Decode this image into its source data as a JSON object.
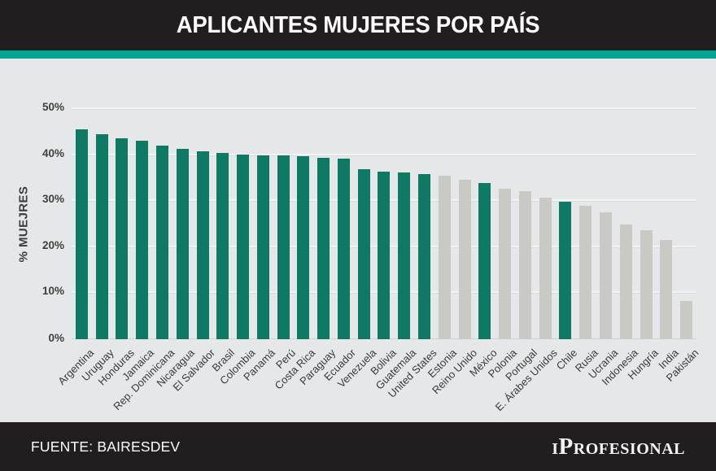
{
  "header": {
    "title": "APLICANTES MUJERES POR PAÍS"
  },
  "footer": {
    "source": "FUENTE: BAIRESDEV",
    "brand": "iProfesional"
  },
  "colors": {
    "header_bg": "#221e1f",
    "accent_stripe": "#00a591",
    "page_bg": "#e6e7e8",
    "bar_highlight": "#0e7a63",
    "bar_default": "#c9c9c6"
  },
  "chart_data": {
    "type": "bar",
    "title": "APLICANTES MUJERES POR PAÍS",
    "xlabel": "",
    "ylabel": "% MUEJRES",
    "ylim": [
      0,
      50
    ],
    "yticks": [
      "0%",
      "10%",
      "20%",
      "30%",
      "40%",
      "50%"
    ],
    "grid": true,
    "legend": false,
    "highlight_meaning": "teal bars = highlighted countries, gray bars = others",
    "points": [
      {
        "label": "Argentina",
        "value": 45.6,
        "highlighted": true
      },
      {
        "label": "Uruguay",
        "value": 44.6,
        "highlighted": true
      },
      {
        "label": "Honduras",
        "value": 43.6,
        "highlighted": true
      },
      {
        "label": "Jamaica",
        "value": 43.1,
        "highlighted": true
      },
      {
        "label": "Rep. Dominicana",
        "value": 42.1,
        "highlighted": true
      },
      {
        "label": "Nicaragua",
        "value": 41.4,
        "highlighted": true
      },
      {
        "label": "El Salvador",
        "value": 40.8,
        "highlighted": true
      },
      {
        "label": "Brasil",
        "value": 40.5,
        "highlighted": true
      },
      {
        "label": "Colombia",
        "value": 40.1,
        "highlighted": true
      },
      {
        "label": "Panamá",
        "value": 40.0,
        "highlighted": true
      },
      {
        "label": "Perú",
        "value": 39.9,
        "highlighted": true
      },
      {
        "label": "Costa Rica",
        "value": 39.8,
        "highlighted": true
      },
      {
        "label": "Paraguay",
        "value": 39.4,
        "highlighted": true
      },
      {
        "label": "Ecuador",
        "value": 39.3,
        "highlighted": true
      },
      {
        "label": "Venezuela",
        "value": 36.9,
        "highlighted": true
      },
      {
        "label": "Bolivia",
        "value": 36.4,
        "highlighted": true
      },
      {
        "label": "Guatemala",
        "value": 36.2,
        "highlighted": true
      },
      {
        "label": "United States",
        "value": 35.8,
        "highlighted": true
      },
      {
        "label": "Estonia",
        "value": 35.6,
        "highlighted": false
      },
      {
        "label": "Reino Unido",
        "value": 34.6,
        "highlighted": false
      },
      {
        "label": "México",
        "value": 34.0,
        "highlighted": true
      },
      {
        "label": "Polonia",
        "value": 32.6,
        "highlighted": false
      },
      {
        "label": "Portugal",
        "value": 32.2,
        "highlighted": false
      },
      {
        "label": "E. Árabes Unidos",
        "value": 30.8,
        "highlighted": false
      },
      {
        "label": "Chile",
        "value": 29.9,
        "highlighted": true
      },
      {
        "label": "Rusia",
        "value": 29.0,
        "highlighted": false
      },
      {
        "label": "Ucrania",
        "value": 27.5,
        "highlighted": false
      },
      {
        "label": "Indonesia",
        "value": 25.0,
        "highlighted": false
      },
      {
        "label": "Hungría",
        "value": 23.7,
        "highlighted": false
      },
      {
        "label": "India",
        "value": 21.5,
        "highlighted": false
      },
      {
        "label": "Pakistán",
        "value": 8.3,
        "highlighted": false
      }
    ]
  }
}
